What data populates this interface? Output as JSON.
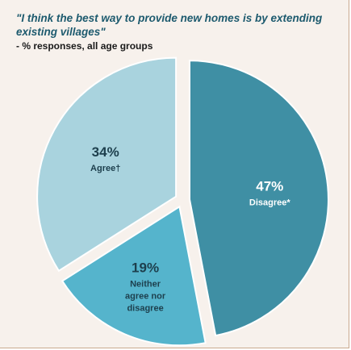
{
  "chart_data": {
    "type": "pie",
    "title": "\"I think the best way to provide new homes is by extending existing villages\"",
    "subtitle": "- % responses, all age groups",
    "slices": [
      {
        "label_lines": [
          "Disagree*"
        ],
        "pct_label": "47%",
        "value": 47,
        "color": "#3f8fa4",
        "text_color": "#ffffff"
      },
      {
        "label_lines": [
          "Neither",
          "agree nor",
          "disagree"
        ],
        "pct_label": "19%",
        "value": 19,
        "color": "#55b4cc",
        "text_color": "#1d3f4d"
      },
      {
        "label_lines": [
          "Agree†"
        ],
        "pct_label": "34%",
        "value": 34,
        "color": "#a9d3de",
        "text_color": "#1d3f4d"
      }
    ],
    "stroke_color": "#ffffff"
  }
}
